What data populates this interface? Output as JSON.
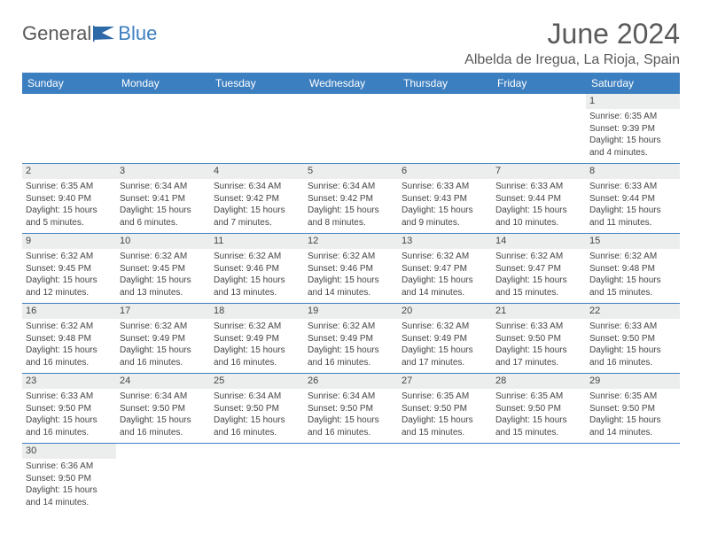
{
  "brand": {
    "part1": "General",
    "part2": "Blue"
  },
  "title": "June 2024",
  "location": "Albelda de Iregua, La Rioja, Spain",
  "colors": {
    "header_bg": "#3c7fc0",
    "header_text": "#ffffff",
    "daynum_bg": "#eceded",
    "rule": "#3c7fc0",
    "text": "#444444"
  },
  "weekdays": [
    "Sunday",
    "Monday",
    "Tuesday",
    "Wednesday",
    "Thursday",
    "Friday",
    "Saturday"
  ],
  "weeks": [
    [
      null,
      null,
      null,
      null,
      null,
      null,
      {
        "n": "1",
        "sr": "Sunrise: 6:35 AM",
        "ss": "Sunset: 9:39 PM",
        "dl": "Daylight: 15 hours and 4 minutes."
      }
    ],
    [
      {
        "n": "2",
        "sr": "Sunrise: 6:35 AM",
        "ss": "Sunset: 9:40 PM",
        "dl": "Daylight: 15 hours and 5 minutes."
      },
      {
        "n": "3",
        "sr": "Sunrise: 6:34 AM",
        "ss": "Sunset: 9:41 PM",
        "dl": "Daylight: 15 hours and 6 minutes."
      },
      {
        "n": "4",
        "sr": "Sunrise: 6:34 AM",
        "ss": "Sunset: 9:42 PM",
        "dl": "Daylight: 15 hours and 7 minutes."
      },
      {
        "n": "5",
        "sr": "Sunrise: 6:34 AM",
        "ss": "Sunset: 9:42 PM",
        "dl": "Daylight: 15 hours and 8 minutes."
      },
      {
        "n": "6",
        "sr": "Sunrise: 6:33 AM",
        "ss": "Sunset: 9:43 PM",
        "dl": "Daylight: 15 hours and 9 minutes."
      },
      {
        "n": "7",
        "sr": "Sunrise: 6:33 AM",
        "ss": "Sunset: 9:44 PM",
        "dl": "Daylight: 15 hours and 10 minutes."
      },
      {
        "n": "8",
        "sr": "Sunrise: 6:33 AM",
        "ss": "Sunset: 9:44 PM",
        "dl": "Daylight: 15 hours and 11 minutes."
      }
    ],
    [
      {
        "n": "9",
        "sr": "Sunrise: 6:32 AM",
        "ss": "Sunset: 9:45 PM",
        "dl": "Daylight: 15 hours and 12 minutes."
      },
      {
        "n": "10",
        "sr": "Sunrise: 6:32 AM",
        "ss": "Sunset: 9:45 PM",
        "dl": "Daylight: 15 hours and 13 minutes."
      },
      {
        "n": "11",
        "sr": "Sunrise: 6:32 AM",
        "ss": "Sunset: 9:46 PM",
        "dl": "Daylight: 15 hours and 13 minutes."
      },
      {
        "n": "12",
        "sr": "Sunrise: 6:32 AM",
        "ss": "Sunset: 9:46 PM",
        "dl": "Daylight: 15 hours and 14 minutes."
      },
      {
        "n": "13",
        "sr": "Sunrise: 6:32 AM",
        "ss": "Sunset: 9:47 PM",
        "dl": "Daylight: 15 hours and 14 minutes."
      },
      {
        "n": "14",
        "sr": "Sunrise: 6:32 AM",
        "ss": "Sunset: 9:47 PM",
        "dl": "Daylight: 15 hours and 15 minutes."
      },
      {
        "n": "15",
        "sr": "Sunrise: 6:32 AM",
        "ss": "Sunset: 9:48 PM",
        "dl": "Daylight: 15 hours and 15 minutes."
      }
    ],
    [
      {
        "n": "16",
        "sr": "Sunrise: 6:32 AM",
        "ss": "Sunset: 9:48 PM",
        "dl": "Daylight: 15 hours and 16 minutes."
      },
      {
        "n": "17",
        "sr": "Sunrise: 6:32 AM",
        "ss": "Sunset: 9:49 PM",
        "dl": "Daylight: 15 hours and 16 minutes."
      },
      {
        "n": "18",
        "sr": "Sunrise: 6:32 AM",
        "ss": "Sunset: 9:49 PM",
        "dl": "Daylight: 15 hours and 16 minutes."
      },
      {
        "n": "19",
        "sr": "Sunrise: 6:32 AM",
        "ss": "Sunset: 9:49 PM",
        "dl": "Daylight: 15 hours and 16 minutes."
      },
      {
        "n": "20",
        "sr": "Sunrise: 6:32 AM",
        "ss": "Sunset: 9:49 PM",
        "dl": "Daylight: 15 hours and 17 minutes."
      },
      {
        "n": "21",
        "sr": "Sunrise: 6:33 AM",
        "ss": "Sunset: 9:50 PM",
        "dl": "Daylight: 15 hours and 17 minutes."
      },
      {
        "n": "22",
        "sr": "Sunrise: 6:33 AM",
        "ss": "Sunset: 9:50 PM",
        "dl": "Daylight: 15 hours and 16 minutes."
      }
    ],
    [
      {
        "n": "23",
        "sr": "Sunrise: 6:33 AM",
        "ss": "Sunset: 9:50 PM",
        "dl": "Daylight: 15 hours and 16 minutes."
      },
      {
        "n": "24",
        "sr": "Sunrise: 6:34 AM",
        "ss": "Sunset: 9:50 PM",
        "dl": "Daylight: 15 hours and 16 minutes."
      },
      {
        "n": "25",
        "sr": "Sunrise: 6:34 AM",
        "ss": "Sunset: 9:50 PM",
        "dl": "Daylight: 15 hours and 16 minutes."
      },
      {
        "n": "26",
        "sr": "Sunrise: 6:34 AM",
        "ss": "Sunset: 9:50 PM",
        "dl": "Daylight: 15 hours and 16 minutes."
      },
      {
        "n": "27",
        "sr": "Sunrise: 6:35 AM",
        "ss": "Sunset: 9:50 PM",
        "dl": "Daylight: 15 hours and 15 minutes."
      },
      {
        "n": "28",
        "sr": "Sunrise: 6:35 AM",
        "ss": "Sunset: 9:50 PM",
        "dl": "Daylight: 15 hours and 15 minutes."
      },
      {
        "n": "29",
        "sr": "Sunrise: 6:35 AM",
        "ss": "Sunset: 9:50 PM",
        "dl": "Daylight: 15 hours and 14 minutes."
      }
    ],
    [
      {
        "n": "30",
        "sr": "Sunrise: 6:36 AM",
        "ss": "Sunset: 9:50 PM",
        "dl": "Daylight: 15 hours and 14 minutes."
      },
      null,
      null,
      null,
      null,
      null,
      null
    ]
  ]
}
